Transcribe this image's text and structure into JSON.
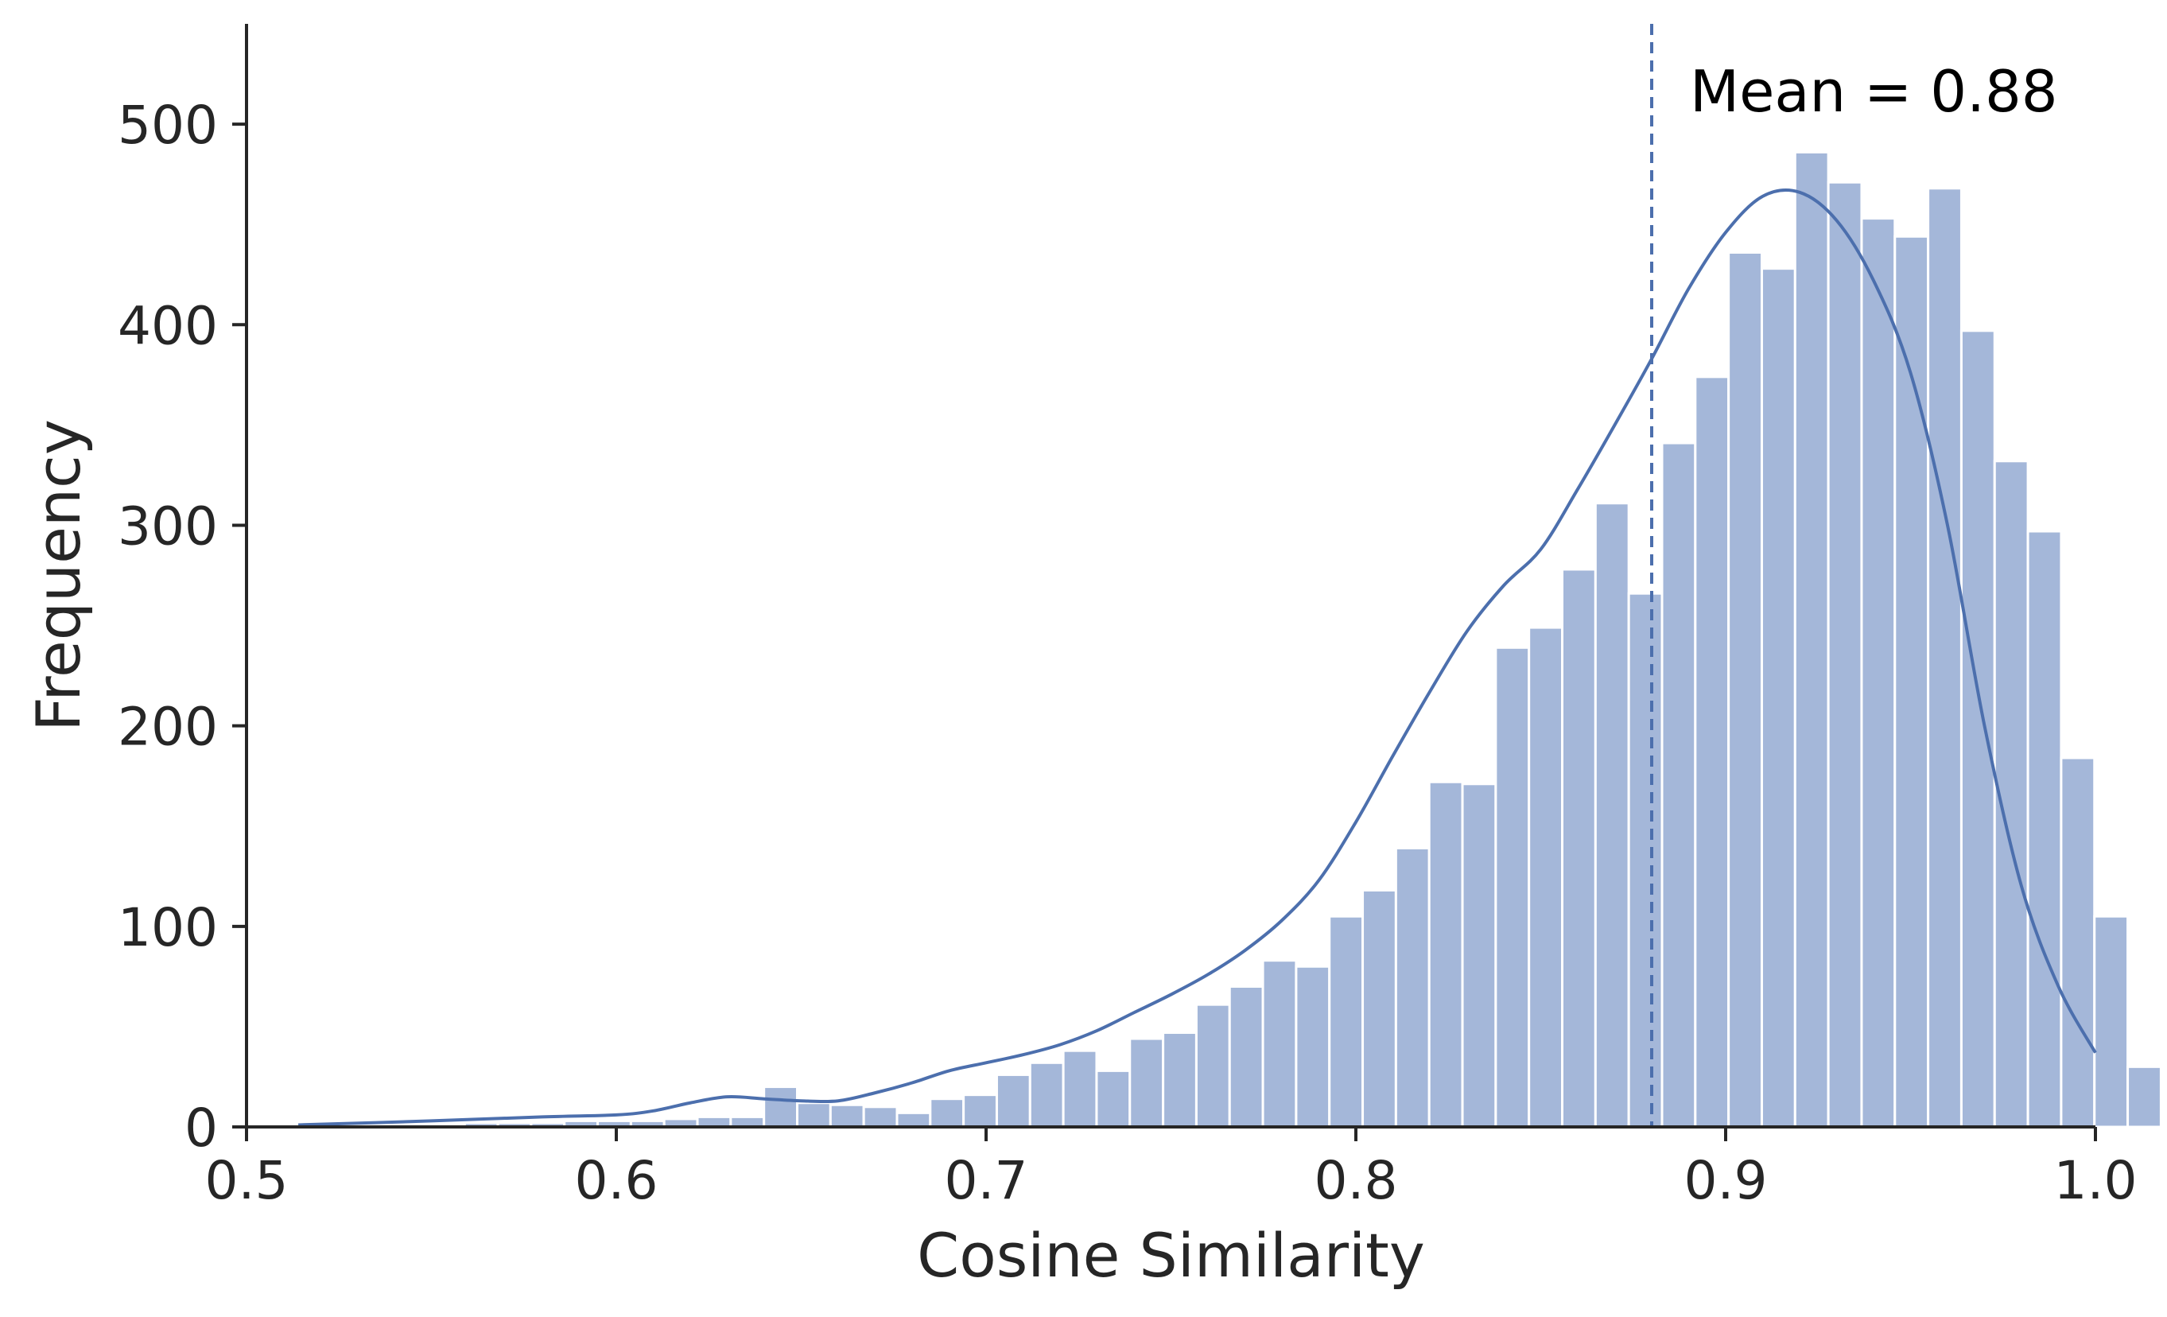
{
  "chart_data": {
    "type": "bar",
    "subtype": "histogram-with-kde",
    "title": "",
    "xlabel": "Cosine Similarity",
    "ylabel": "Frequency",
    "xlim": [
      0.5,
      1.0
    ],
    "ylim": [
      0,
      550
    ],
    "xticks": [
      "0.5",
      "0.6",
      "0.7",
      "0.8",
      "0.9",
      "1.0"
    ],
    "xtick_values": [
      0.5,
      0.6,
      0.7,
      0.8,
      0.9,
      1.0
    ],
    "yticks": [
      "0",
      "100",
      "200",
      "300",
      "400",
      "500"
    ],
    "ytick_values": [
      0,
      100,
      200,
      300,
      400,
      500
    ],
    "grid": false,
    "colors": {
      "bar": "#a4b7d9",
      "line": "#4c6fad",
      "axis": "#262626"
    },
    "bins": {
      "start": 0.514,
      "width": 0.008995,
      "counts": [
        1,
        1,
        1,
        1,
        1,
        2,
        2,
        2,
        3,
        3,
        3,
        4,
        5,
        5,
        20,
        12,
        11,
        10,
        7,
        14,
        16,
        26,
        32,
        38,
        28,
        44,
        47,
        61,
        70,
        83,
        80,
        105,
        118,
        139,
        172,
        171,
        239,
        249,
        278,
        311,
        266,
        341,
        374,
        436,
        428,
        486,
        471,
        453,
        444,
        468,
        397,
        332,
        297,
        184,
        105,
        30
      ]
    },
    "kde": {
      "x": [
        0.514,
        0.55,
        0.58,
        0.6,
        0.61,
        0.62,
        0.63,
        0.64,
        0.65,
        0.66,
        0.67,
        0.68,
        0.69,
        0.7,
        0.71,
        0.72,
        0.73,
        0.74,
        0.75,
        0.76,
        0.77,
        0.78,
        0.79,
        0.8,
        0.81,
        0.82,
        0.83,
        0.84,
        0.85,
        0.86,
        0.87,
        0.88,
        0.89,
        0.9,
        0.91,
        0.92,
        0.93,
        0.94,
        0.95,
        0.96,
        0.97,
        0.98,
        0.99,
        1.0
      ],
      "y": [
        1,
        3,
        5,
        6,
        8,
        12,
        15,
        14,
        13,
        13,
        17,
        22,
        28,
        32,
        36,
        41,
        48,
        57,
        66,
        76,
        88,
        103,
        123,
        152,
        185,
        217,
        247,
        270,
        288,
        318,
        350,
        383,
        418,
        446,
        464,
        466,
        452,
        422,
        376,
        300,
        200,
        120,
        70,
        37
      ]
    },
    "mean": 0.88,
    "annotations": [
      {
        "text": "Mean = 0.88",
        "x": 0.88
      }
    ]
  }
}
